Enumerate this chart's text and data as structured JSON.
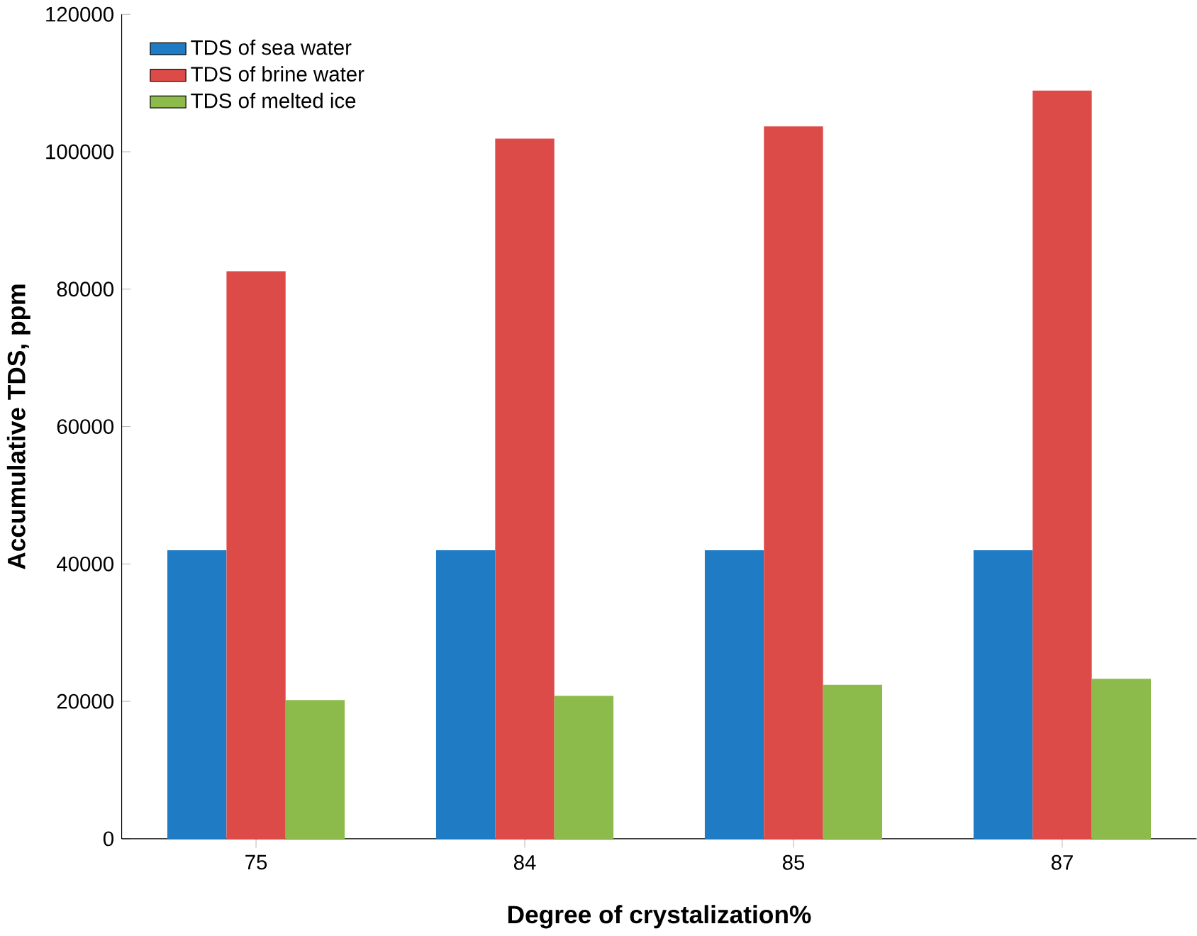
{
  "chart_data": {
    "type": "bar",
    "xlabel": "Degree of crystalization%",
    "ylabel": "Accumulative TDS, ppm",
    "categories": [
      "75",
      "84",
      "85",
      "87"
    ],
    "series": [
      {
        "name": "TDS of sea water",
        "color": "#1f7bc4",
        "values": [
          42000,
          42000,
          42000,
          42000
        ]
      },
      {
        "name": "TDS of brine water",
        "color": "#dc4b48",
        "values": [
          82600,
          101900,
          103700,
          108900
        ]
      },
      {
        "name": "TDS of melted ice",
        "color": "#8cbb4b",
        "values": [
          20200,
          20800,
          22400,
          23300
        ]
      }
    ],
    "ylim": [
      0,
      120000
    ],
    "yticks": [
      0,
      20000,
      40000,
      60000,
      80000,
      100000,
      120000
    ],
    "grid": false,
    "legend": "top left"
  }
}
